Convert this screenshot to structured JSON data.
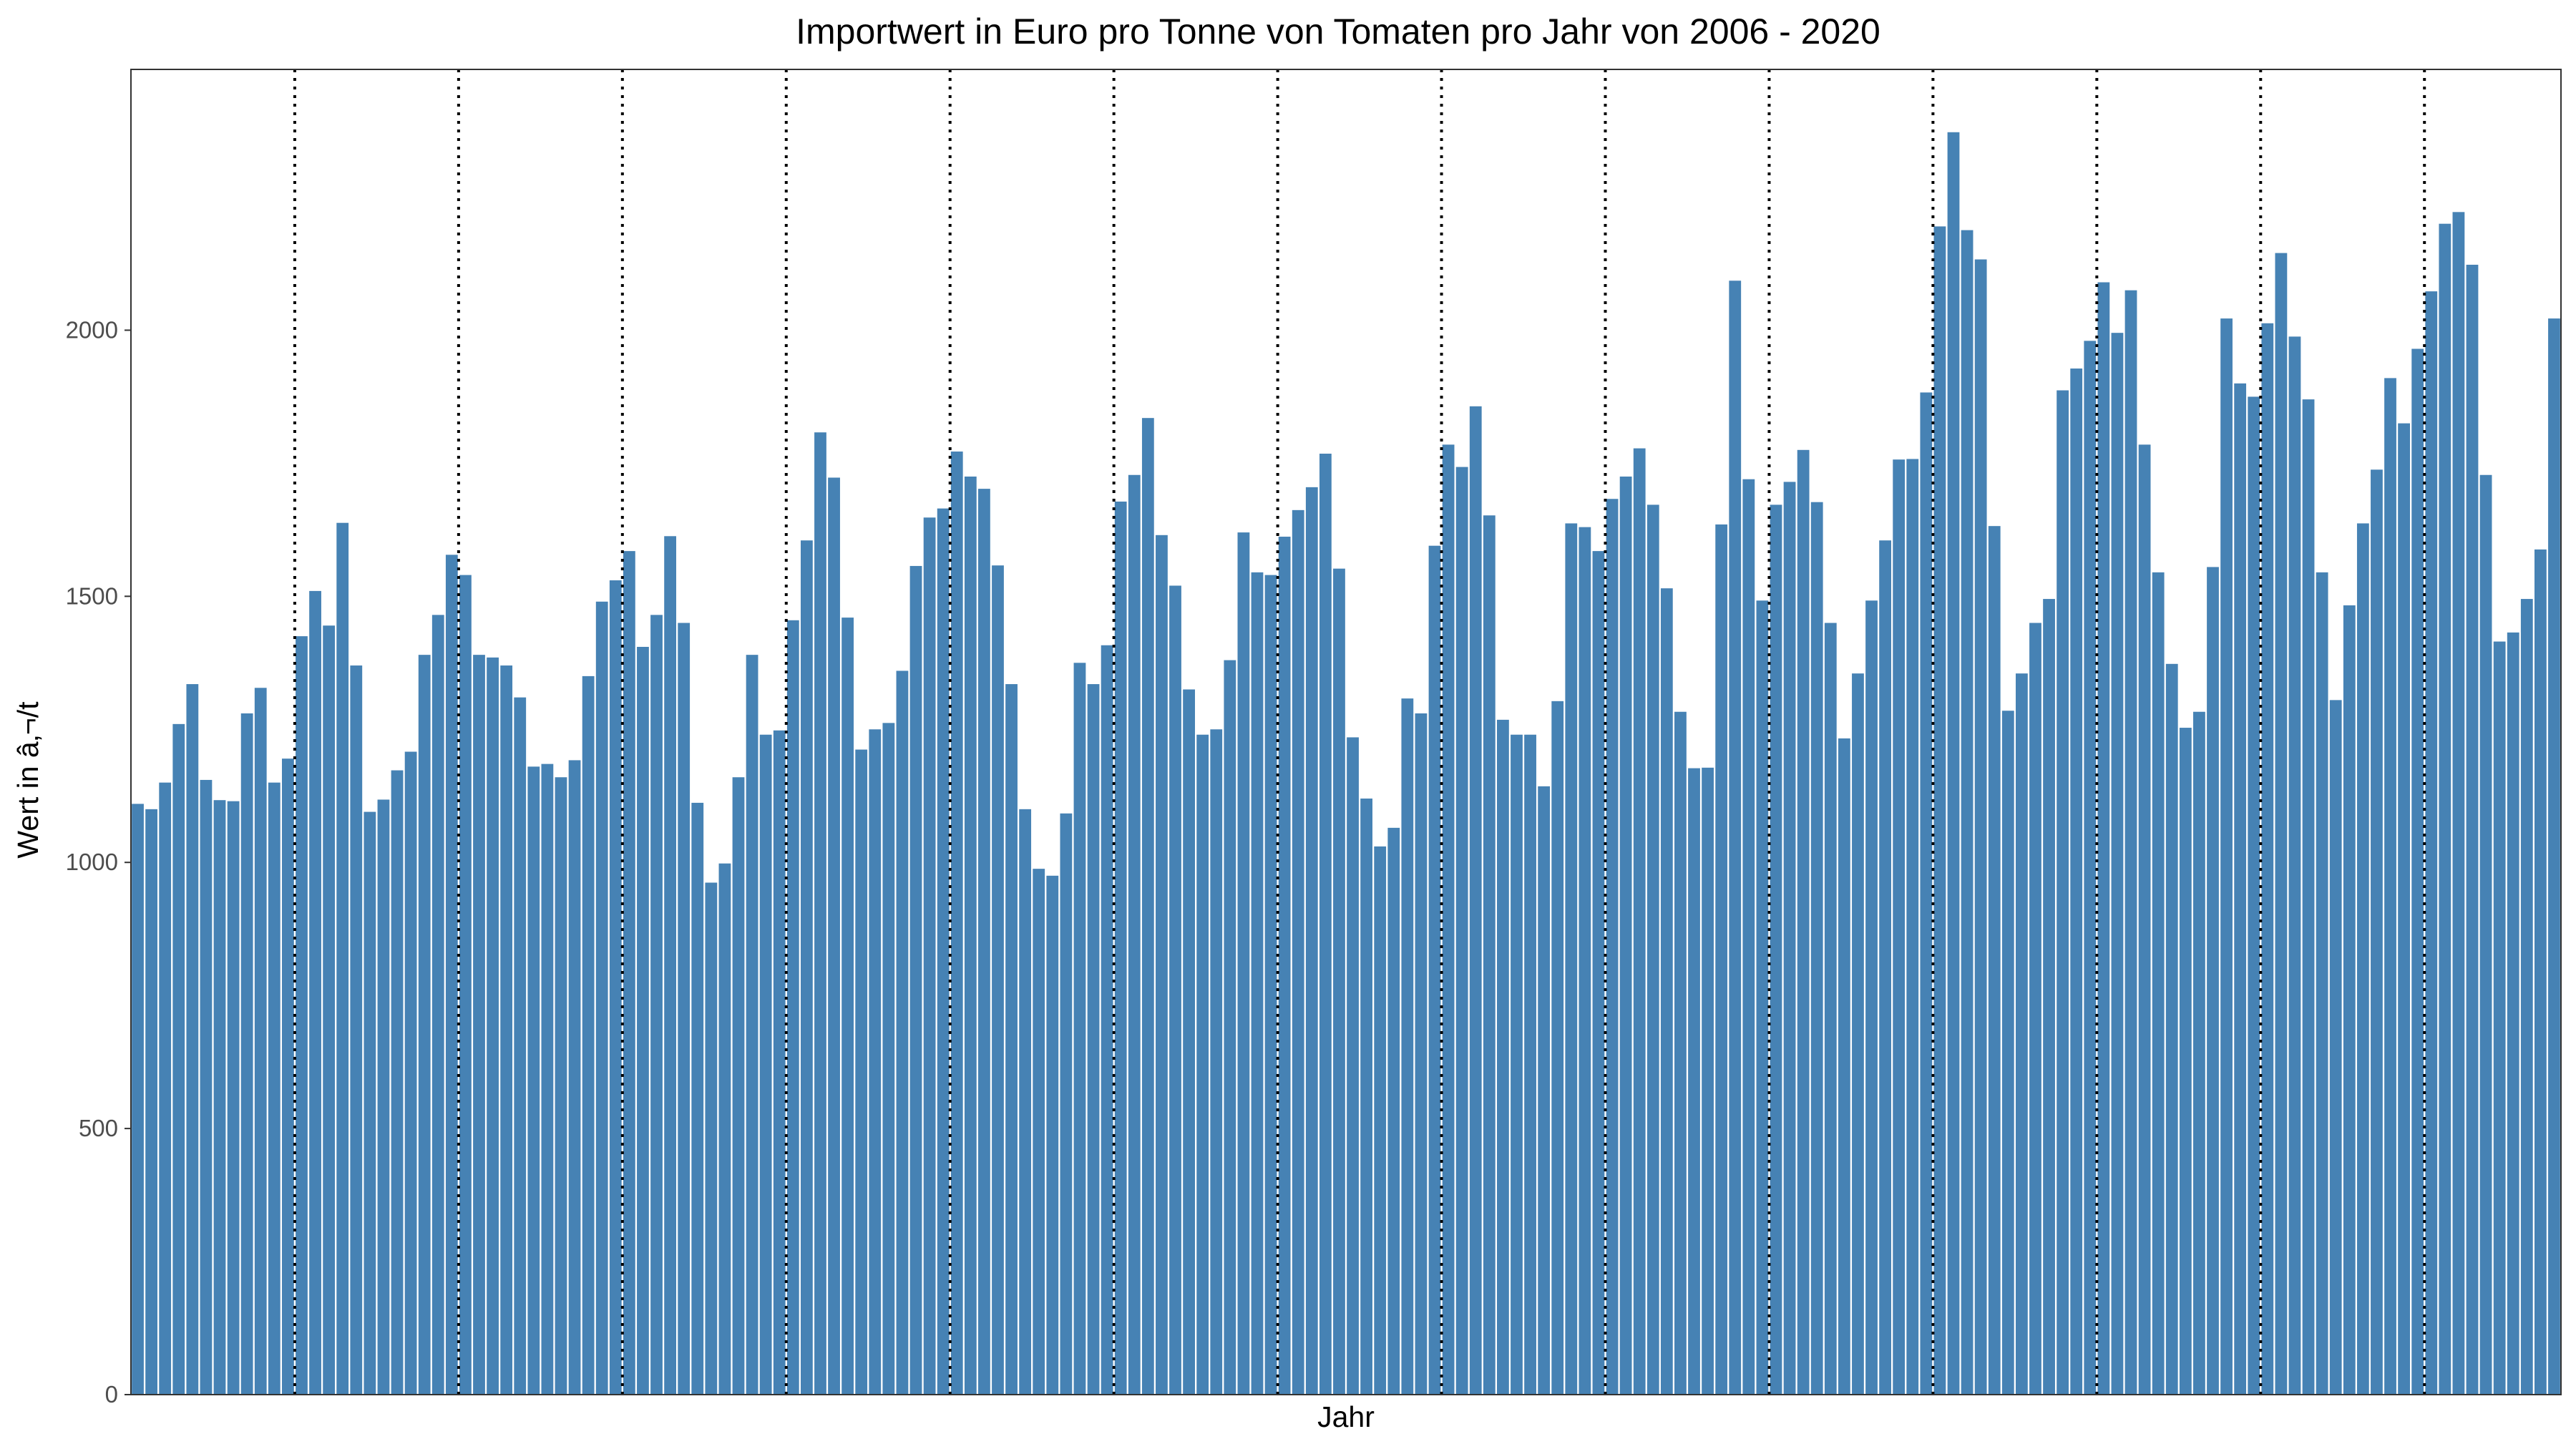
{
  "chart_data": {
    "type": "bar",
    "title": "Importwert in Euro pro Tonne von Tomaten pro Jahr von 2006 - 2020",
    "xlabel": "Jahr",
    "ylabel": "Wert in â‚¬/t",
    "ylim": [
      0,
      2490
    ],
    "yticks": [
      0,
      500,
      1000,
      1500,
      2000
    ],
    "ytick_labels": [
      "0",
      "500",
      "1000",
      "1500",
      "2000"
    ],
    "x_tick_labels_shown": false,
    "grid": false,
    "bar_color": "#4682B4",
    "year_separator": "dotted vertical line before each January (2007-2020)",
    "series": [
      {
        "values": [
          1110,
          1100,
          1150,
          1260,
          1335,
          1155,
          1117,
          1115,
          1280,
          1328,
          1150,
          1195,
          1425,
          1510,
          1445,
          1638,
          1370,
          1095,
          1118,
          1173,
          1208,
          1390,
          1465,
          1578,
          1540,
          1390,
          1385,
          1370,
          1310,
          1180,
          1185,
          1160,
          1192,
          1350,
          1490,
          1530,
          1585,
          1405,
          1465,
          1613,
          1450,
          1112,
          962,
          998,
          1160,
          1390,
          1240,
          1248,
          1455,
          1605,
          1808,
          1723,
          1460,
          1212,
          1250,
          1262,
          1360,
          1557,
          1648,
          1665,
          1772,
          1725,
          1702,
          1558,
          1335,
          1100,
          988,
          975,
          1092,
          1375,
          1335,
          1408,
          1678,
          1728,
          1835,
          1615,
          1520,
          1325,
          1240,
          1250,
          1380,
          1620,
          1545,
          1540,
          1612,
          1662,
          1705,
          1768,
          1552,
          1235,
          1120,
          1030,
          1065,
          1308,
          1280,
          1595,
          1785,
          1743,
          1857,
          1652,
          1268,
          1240,
          1240,
          1143,
          1303,
          1637,
          1630,
          1585,
          1683,
          1725,
          1778,
          1672,
          1515,
          1283,
          1177,
          1178,
          1635,
          2093,
          1720,
          1492,
          1672,
          1715,
          1775,
          1677,
          1450,
          1233,
          1355,
          1492,
          1605,
          1757,
          1758,
          1883,
          2195,
          2372,
          2188,
          2133,
          1632,
          1285,
          1355,
          1450,
          1495,
          1887,
          1928,
          1980,
          2090,
          1995,
          2075,
          1785,
          1545,
          1373,
          1253,
          1283,
          1555,
          2022,
          1900,
          1875,
          2013,
          2145,
          1988,
          1870,
          1545,
          1305,
          1483,
          1637,
          1738,
          1910,
          1825,
          1965,
          2073,
          2200,
          2222,
          2123,
          1728,
          1415,
          1432,
          1495,
          1588,
          2022
        ]
      }
    ]
  }
}
